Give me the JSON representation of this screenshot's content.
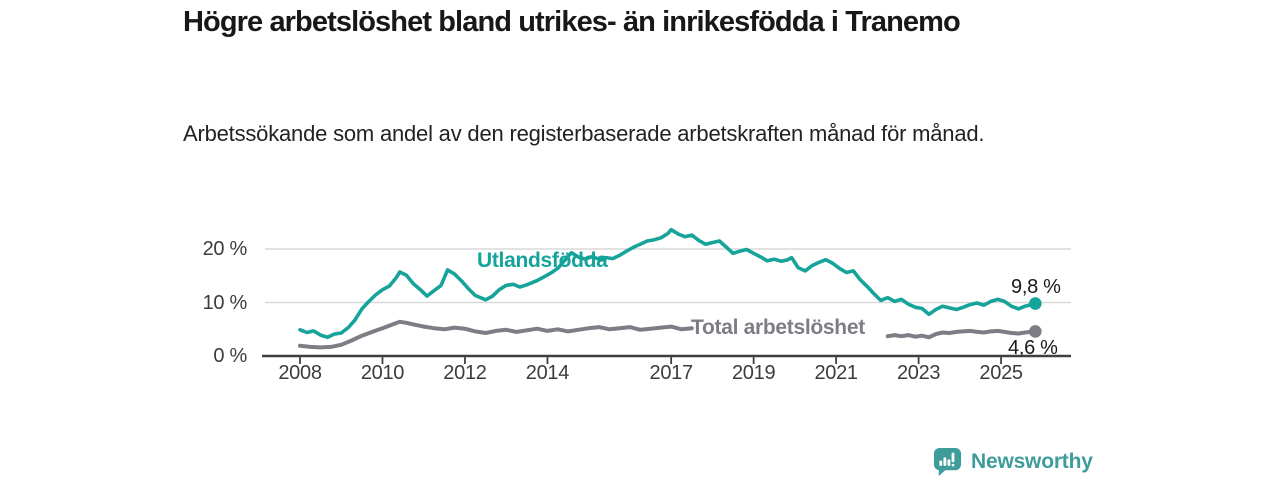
{
  "header": {
    "title": "Högre arbetslöshet bland utrikes- än inrikesfödda i Tranemo",
    "subtitle": "Arbetssökande som andel av den registerbaserade arbetskraften månad för månad."
  },
  "chart_data": {
    "type": "line",
    "title": "Högre arbetslöshet bland utrikes- än inrikesfödda i Tranemo",
    "subtitle": "Arbetssökande som andel av den registerbaserade arbetskraften månad för månad.",
    "xlabel": "",
    "ylabel": "",
    "y_unit": "%",
    "x_unit": "år (månadsdata, decimalår)",
    "ylim": [
      0,
      25
    ],
    "xlim": [
      2007.1,
      2026.7
    ],
    "grid": "horizontal",
    "axis_color": "#3f3f3f",
    "grid_color": "#d9d9d9",
    "x_ticks": [
      {
        "value": 2008,
        "label": "2008"
      },
      {
        "value": 2010,
        "label": "2010"
      },
      {
        "value": 2012,
        "label": "2012"
      },
      {
        "value": 2014,
        "label": "2014"
      },
      {
        "value": 2017,
        "label": "2017"
      },
      {
        "value": 2019,
        "label": "2019"
      },
      {
        "value": 2021,
        "label": "2021"
      },
      {
        "value": 2023,
        "label": "2023"
      },
      {
        "value": 2025,
        "label": "2025"
      }
    ],
    "y_ticks": [
      {
        "value": 0,
        "label": "0 %"
      },
      {
        "value": 10,
        "label": "10 %"
      },
      {
        "value": 20,
        "label": "20 %"
      }
    ],
    "series": [
      {
        "name": "Utlandsfödda",
        "color": "#15a39a",
        "line_width": 3.6,
        "end_value": 9.8,
        "end_label": "9,8 %",
        "segments": [
          [
            [
              2008.0,
              4.9
            ],
            [
              2008.17,
              4.4
            ],
            [
              2008.33,
              4.7
            ],
            [
              2008.5,
              3.9
            ],
            [
              2008.67,
              3.5
            ],
            [
              2008.83,
              4.1
            ],
            [
              2009.0,
              4.3
            ],
            [
              2009.17,
              5.3
            ],
            [
              2009.33,
              6.7
            ],
            [
              2009.5,
              8.8
            ],
            [
              2009.67,
              10.2
            ],
            [
              2009.83,
              11.4
            ],
            [
              2010.0,
              12.4
            ],
            [
              2010.17,
              13.1
            ],
            [
              2010.33,
              14.6
            ],
            [
              2010.42,
              15.7
            ],
            [
              2010.58,
              15.1
            ],
            [
              2010.75,
              13.5
            ],
            [
              2010.92,
              12.4
            ],
            [
              2011.08,
              11.2
            ],
            [
              2011.25,
              12.2
            ],
            [
              2011.42,
              13.2
            ],
            [
              2011.58,
              16.1
            ],
            [
              2011.75,
              15.3
            ],
            [
              2011.92,
              14.0
            ],
            [
              2012.08,
              12.6
            ],
            [
              2012.25,
              11.3
            ],
            [
              2012.5,
              10.5
            ],
            [
              2012.67,
              11.2
            ],
            [
              2012.83,
              12.4
            ],
            [
              2013.0,
              13.2
            ],
            [
              2013.17,
              13.4
            ],
            [
              2013.33,
              12.9
            ],
            [
              2013.5,
              13.3
            ],
            [
              2013.75,
              14.1
            ],
            [
              2013.92,
              14.8
            ],
            [
              2014.08,
              15.5
            ],
            [
              2014.25,
              16.4
            ],
            [
              2014.42,
              17.9
            ],
            [
              2014.58,
              19.3
            ],
            [
              2014.75,
              18.5
            ],
            [
              2014.92,
              18.1
            ],
            [
              2015.08,
              18.6
            ],
            [
              2015.25,
              18.1
            ],
            [
              2015.42,
              18.4
            ],
            [
              2015.58,
              18.2
            ],
            [
              2015.75,
              18.8
            ],
            [
              2015.92,
              19.6
            ],
            [
              2016.08,
              20.3
            ],
            [
              2016.25,
              20.9
            ],
            [
              2016.42,
              21.5
            ],
            [
              2016.58,
              21.7
            ],
            [
              2016.75,
              22.1
            ],
            [
              2016.92,
              22.9
            ],
            [
              2017.0,
              23.6
            ],
            [
              2017.17,
              22.8
            ],
            [
              2017.33,
              22.3
            ],
            [
              2017.5,
              22.6
            ],
            [
              2017.67,
              21.6
            ],
            [
              2017.83,
              20.9
            ],
            [
              2018.0,
              21.2
            ],
            [
              2018.17,
              21.5
            ],
            [
              2018.33,
              20.4
            ],
            [
              2018.5,
              19.2
            ],
            [
              2018.67,
              19.6
            ],
            [
              2018.83,
              19.9
            ],
            [
              2019.0,
              19.2
            ],
            [
              2019.17,
              18.5
            ],
            [
              2019.33,
              17.8
            ],
            [
              2019.5,
              18.1
            ],
            [
              2019.67,
              17.7
            ],
            [
              2019.83,
              18.0
            ],
            [
              2019.92,
              18.4
            ],
            [
              2020.08,
              16.5
            ],
            [
              2020.25,
              15.9
            ],
            [
              2020.42,
              16.9
            ],
            [
              2020.58,
              17.5
            ],
            [
              2020.75,
              18.0
            ],
            [
              2020.92,
              17.3
            ],
            [
              2021.08,
              16.4
            ],
            [
              2021.25,
              15.6
            ],
            [
              2021.42,
              15.9
            ],
            [
              2021.58,
              14.3
            ],
            [
              2021.75,
              13.0
            ],
            [
              2021.92,
              11.6
            ],
            [
              2022.08,
              10.4
            ],
            [
              2022.25,
              10.9
            ],
            [
              2022.42,
              10.2
            ],
            [
              2022.58,
              10.6
            ],
            [
              2022.75,
              9.7
            ],
            [
              2022.92,
              9.1
            ],
            [
              2023.08,
              8.9
            ],
            [
              2023.25,
              7.8
            ],
            [
              2023.42,
              8.7
            ],
            [
              2023.58,
              9.3
            ],
            [
              2023.75,
              9.0
            ],
            [
              2023.92,
              8.7
            ],
            [
              2024.08,
              9.1
            ],
            [
              2024.25,
              9.6
            ],
            [
              2024.42,
              9.9
            ],
            [
              2024.58,
              9.5
            ],
            [
              2024.75,
              10.2
            ],
            [
              2024.92,
              10.6
            ],
            [
              2025.08,
              10.2
            ],
            [
              2025.25,
              9.3
            ],
            [
              2025.42,
              8.8
            ],
            [
              2025.58,
              9.3
            ],
            [
              2025.83,
              9.8
            ]
          ]
        ]
      },
      {
        "name": "Total arbetslöshet",
        "color": "#7d7d85",
        "line_width": 4.0,
        "end_value": 4.6,
        "end_label": "4,6 %",
        "segments": [
          [
            [
              2008.0,
              1.9
            ],
            [
              2008.25,
              1.7
            ],
            [
              2008.5,
              1.6
            ],
            [
              2008.75,
              1.7
            ],
            [
              2009.0,
              2.1
            ],
            [
              2009.25,
              2.9
            ],
            [
              2009.5,
              3.8
            ],
            [
              2009.75,
              4.5
            ],
            [
              2010.0,
              5.2
            ],
            [
              2010.25,
              5.9
            ],
            [
              2010.42,
              6.4
            ],
            [
              2010.58,
              6.2
            ],
            [
              2010.75,
              5.9
            ],
            [
              2011.0,
              5.5
            ],
            [
              2011.25,
              5.2
            ],
            [
              2011.5,
              5.0
            ],
            [
              2011.75,
              5.3
            ],
            [
              2012.0,
              5.1
            ],
            [
              2012.25,
              4.6
            ],
            [
              2012.5,
              4.3
            ],
            [
              2012.75,
              4.7
            ],
            [
              2013.0,
              4.9
            ],
            [
              2013.25,
              4.5
            ],
            [
              2013.5,
              4.8
            ],
            [
              2013.75,
              5.1
            ],
            [
              2014.0,
              4.7
            ],
            [
              2014.25,
              5.0
            ],
            [
              2014.5,
              4.6
            ],
            [
              2014.75,
              4.9
            ],
            [
              2015.0,
              5.2
            ],
            [
              2015.25,
              5.4
            ],
            [
              2015.5,
              5.0
            ],
            [
              2015.75,
              5.2
            ],
            [
              2016.0,
              5.4
            ],
            [
              2016.25,
              4.9
            ],
            [
              2016.5,
              5.1
            ],
            [
              2016.75,
              5.3
            ],
            [
              2017.0,
              5.5
            ],
            [
              2017.25,
              5.0
            ],
            [
              2017.5,
              5.2
            ]
          ],
          [
            [
              2022.25,
              3.7
            ],
            [
              2022.42,
              3.9
            ],
            [
              2022.58,
              3.7
            ],
            [
              2022.75,
              3.9
            ],
            [
              2022.92,
              3.6
            ],
            [
              2023.08,
              3.8
            ],
            [
              2023.25,
              3.5
            ],
            [
              2023.42,
              4.1
            ],
            [
              2023.58,
              4.4
            ],
            [
              2023.75,
              4.3
            ],
            [
              2023.92,
              4.5
            ],
            [
              2024.08,
              4.6
            ],
            [
              2024.25,
              4.7
            ],
            [
              2024.42,
              4.5
            ],
            [
              2024.58,
              4.4
            ],
            [
              2024.75,
              4.6
            ],
            [
              2024.92,
              4.7
            ],
            [
              2025.08,
              4.5
            ],
            [
              2025.25,
              4.3
            ],
            [
              2025.42,
              4.2
            ],
            [
              2025.58,
              4.4
            ],
            [
              2025.83,
              4.6
            ]
          ]
        ]
      }
    ],
    "legend_position": "inline-labels"
  },
  "footer": {
    "brand": "Newsworthy",
    "brand_color": "#3e9c9b"
  }
}
